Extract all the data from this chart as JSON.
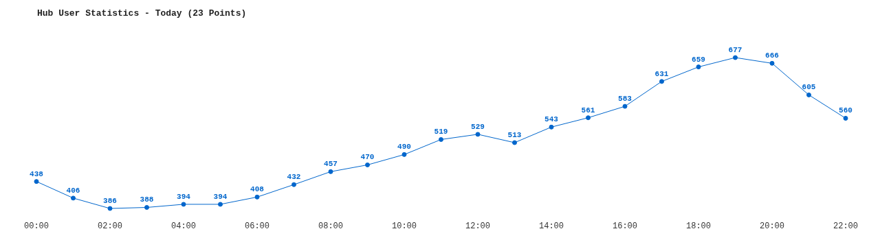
{
  "chart_data": {
    "type": "line",
    "title": "Hub User Statistics - Today (23 Points)",
    "categories": [
      "00:00",
      null,
      "02:00",
      null,
      "04:00",
      null,
      "06:00",
      null,
      "08:00",
      null,
      "10:00",
      null,
      "12:00",
      null,
      "14:00",
      null,
      "16:00",
      null,
      "18:00",
      null,
      "20:00",
      null,
      "22:00"
    ],
    "series": [
      {
        "color": "#0066cc",
        "values": [
          438,
          406,
          386,
          388,
          394,
          394,
          408,
          432,
          457,
          470,
          490,
          519,
          529,
          513,
          543,
          561,
          583,
          631,
          659,
          677,
          666,
          605,
          560
        ]
      }
    ],
    "data_labels": true,
    "marker": "circle",
    "line_style": "solid",
    "grid": false,
    "tick_labels": "x"
  }
}
